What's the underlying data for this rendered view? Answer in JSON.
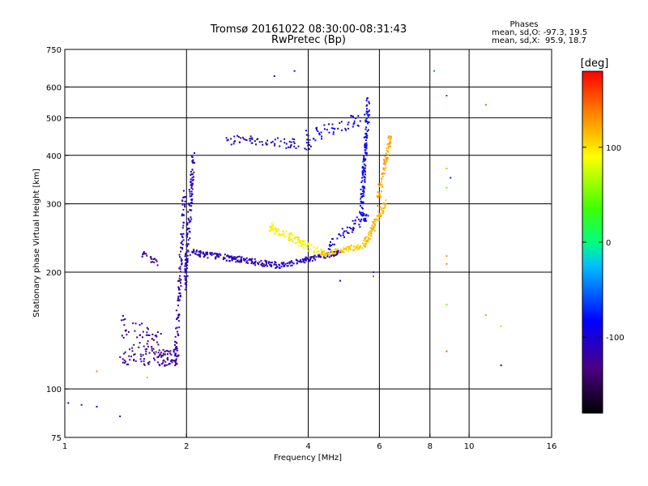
{
  "header": {
    "title": "Tromsø 20161022 08:30:00-08:31:43",
    "subtitle": "RwPretec (Bp)"
  },
  "stats": {
    "heading": "Phases",
    "line_o": "mean, sd,O: -97.3, 19.5",
    "line_x": "mean, sd,X:  95.9, 18.7"
  },
  "colorbar": {
    "label": "[deg]",
    "min": -180,
    "max": 180,
    "ticks": [
      100,
      0,
      -100
    ]
  },
  "chart_data": {
    "type": "scatter",
    "title": "Tromsø 20161022 08:30:00-08:31:43",
    "subtitle": "RwPretec (Bp)",
    "xlabel": "Frequency [MHz]",
    "ylabel": "Stationary phase Virtual Height [km]",
    "x_scale": "log",
    "y_scale": "log",
    "xlim": [
      1,
      16
    ],
    "ylim": [
      75,
      750
    ],
    "xticks": [
      1,
      2,
      4,
      6,
      8,
      10,
      16
    ],
    "yticks": [
      75,
      100,
      200,
      300,
      400,
      500,
      600,
      750
    ],
    "grid": true,
    "series": [
      {
        "name": "O",
        "mean_phase": -97.3,
        "sd_phase": 19.5,
        "segments": [
          {
            "x0": 1.38,
            "x1": 1.92,
            "y0": 122,
            "y1": 120,
            "n": 110,
            "spread": 0.05,
            "phase": -125
          },
          {
            "x0": 1.38,
            "x1": 1.75,
            "y0": 145,
            "y1": 128,
            "n": 50,
            "spread": 0.08,
            "phase": -130
          },
          {
            "x0": 1.55,
            "x1": 1.7,
            "y0": 225,
            "y1": 210,
            "n": 20,
            "spread": 0.02,
            "phase": -125
          },
          {
            "x0": 1.88,
            "x1": 1.98,
            "y0": 120,
            "y1": 320,
            "n": 110,
            "spread": 0.03,
            "phase": -115
          },
          {
            "x0": 1.98,
            "x1": 2.08,
            "y0": 180,
            "y1": 400,
            "n": 120,
            "spread": 0.04,
            "phase": -110
          },
          {
            "x0": 2.05,
            "x1": 3.4,
            "y0": 225,
            "y1": 208,
            "n": 170,
            "spread": 0.018,
            "phase": -112
          },
          {
            "x0": 3.4,
            "x1": 4.8,
            "y0": 208,
            "y1": 225,
            "n": 110,
            "spread": 0.015,
            "phase": -108
          },
          {
            "x0": 2.5,
            "x1": 4.1,
            "y0": 440,
            "y1": 425,
            "n": 70,
            "spread": 0.03,
            "phase": -108
          },
          {
            "x0": 3.9,
            "x1": 5.5,
            "y0": 445,
            "y1": 500,
            "n": 50,
            "spread": 0.04,
            "phase": -92
          },
          {
            "x0": 4.5,
            "x1": 5.6,
            "y0": 235,
            "y1": 280,
            "n": 60,
            "spread": 0.03,
            "phase": -98
          },
          {
            "x0": 5.4,
            "x1": 5.65,
            "y0": 280,
            "y1": 560,
            "n": 130,
            "spread": 0.05,
            "phase": -88
          }
        ]
      },
      {
        "name": "X",
        "mean_phase": 95.9,
        "sd_phase": 18.7,
        "segments": [
          {
            "x0": 3.2,
            "x1": 4.4,
            "y0": 262,
            "y1": 222,
            "n": 110,
            "spread": 0.025,
            "phase": 92
          },
          {
            "x0": 4.3,
            "x1": 5.6,
            "y0": 222,
            "y1": 235,
            "n": 90,
            "spread": 0.015,
            "phase": 108
          },
          {
            "x0": 5.5,
            "x1": 6.2,
            "y0": 235,
            "y1": 300,
            "n": 80,
            "spread": 0.03,
            "phase": 118
          },
          {
            "x0": 5.9,
            "x1": 6.4,
            "y0": 300,
            "y1": 450,
            "n": 80,
            "spread": 0.04,
            "phase": 122
          }
        ]
      }
    ],
    "outliers": [
      {
        "x": 1.02,
        "y": 92,
        "phase": -85
      },
      {
        "x": 1.1,
        "y": 91,
        "phase": -70
      },
      {
        "x": 1.2,
        "y": 90,
        "phase": -100
      },
      {
        "x": 1.37,
        "y": 85,
        "phase": -100
      },
      {
        "x": 1.2,
        "y": 111,
        "phase": 135
      },
      {
        "x": 1.6,
        "y": 107,
        "phase": 50
      },
      {
        "x": 3.3,
        "y": 640,
        "phase": -120
      },
      {
        "x": 3.7,
        "y": 660,
        "phase": -90
      },
      {
        "x": 4.8,
        "y": 190,
        "phase": -80
      },
      {
        "x": 5.8,
        "y": 200,
        "phase": -70
      },
      {
        "x": 5.8,
        "y": 195,
        "phase": 160
      },
      {
        "x": 8.2,
        "y": 660,
        "phase": -40
      },
      {
        "x": 8.8,
        "y": 570,
        "phase": -60
      },
      {
        "x": 8.8,
        "y": 370,
        "phase": 120
      },
      {
        "x": 9.0,
        "y": 350,
        "phase": -70
      },
      {
        "x": 8.8,
        "y": 330,
        "phase": 50
      },
      {
        "x": 8.8,
        "y": 220,
        "phase": 130
      },
      {
        "x": 8.8,
        "y": 210,
        "phase": 140
      },
      {
        "x": 8.8,
        "y": 165,
        "phase": 50
      },
      {
        "x": 8.8,
        "y": 125,
        "phase": 150
      },
      {
        "x": 11.0,
        "y": 540,
        "phase": 150
      },
      {
        "x": 11.0,
        "y": 155,
        "phase": 130
      },
      {
        "x": 12.0,
        "y": 145,
        "phase": 60
      },
      {
        "x": 12.0,
        "y": 115,
        "phase": -120
      }
    ]
  }
}
